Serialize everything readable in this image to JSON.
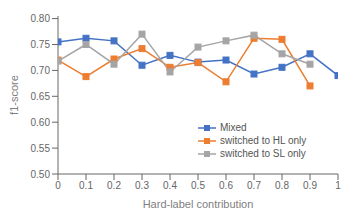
{
  "chart_data": {
    "type": "line",
    "x": [
      0,
      0.1,
      0.2,
      0.3,
      0.4,
      0.5,
      0.6,
      0.7,
      0.8,
      0.9,
      1.0
    ],
    "xlabel": "Hard-label contribution",
    "ylabel": "f1-score",
    "xlim": [
      0,
      1
    ],
    "xticks": [
      0,
      0.1,
      0.2,
      0.3,
      0.4,
      0.5,
      0.6,
      0.7,
      0.8,
      0.9,
      1
    ],
    "ylim": [
      0.5,
      0.805
    ],
    "yticks": [
      {
        "value": 0.5,
        "label": "0.50"
      },
      0.55,
      {
        "value": 0.6,
        "label": "0.60"
      },
      0.65,
      {
        "value": 0.7,
        "label": "0.70"
      },
      0.75,
      {
        "value": 0.8,
        "label": "0.80"
      }
    ],
    "grid": false,
    "legend": "lower right",
    "marker": "square",
    "series": [
      {
        "name": "Mixed",
        "color": "#4472C4",
        "values": [
          0.755,
          0.762,
          0.757,
          0.71,
          0.729,
          0.716,
          0.72,
          0.693,
          0.706,
          0.732,
          0.69
        ]
      },
      {
        "name": "switched to HL only",
        "color": "#ED7D31",
        "values": [
          0.72,
          0.688,
          0.722,
          0.742,
          0.706,
          0.715,
          0.678,
          0.762,
          0.76,
          0.67,
          null
        ]
      },
      {
        "name": "switched to SL only",
        "color": "#A5A5A5",
        "values": [
          0.718,
          0.75,
          0.712,
          0.77,
          0.697,
          0.745,
          0.757,
          0.768,
          0.732,
          0.712,
          null
        ]
      }
    ]
  }
}
